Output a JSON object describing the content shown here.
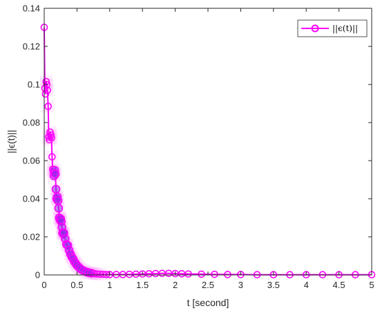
{
  "chart_data": {
    "type": "line",
    "title": "",
    "xlabel": "t  [second]",
    "ylabel": "||ϵ(t)||",
    "xlim": [
      0,
      5
    ],
    "ylim": [
      0,
      0.14
    ],
    "xticks": [
      0,
      0.5,
      1,
      1.5,
      2,
      2.5,
      3,
      3.5,
      4,
      4.5,
      5
    ],
    "xtick_labels": [
      "0",
      "0.5",
      "1",
      "1.5",
      "2",
      "2.5",
      "3",
      "3.5",
      "4",
      "4.5",
      "5"
    ],
    "yticks": [
      0,
      0.02,
      0.04,
      0.06,
      0.08,
      0.1,
      0.12,
      0.14
    ],
    "ytick_labels": [
      "0",
      "0.02",
      "0.04",
      "0.06",
      "0.08",
      "0.1",
      "0.12",
      "0.14"
    ],
    "grid": false,
    "legend_position": "top-right",
    "colors": {
      "series": "#ff00ff",
      "marker_blend": "#8a2be2"
    },
    "series": [
      {
        "name": "||ϵ(t)||",
        "marker": "circle-open",
        "x": [
          0,
          0.01,
          0.02,
          0.03,
          0.04,
          0.05,
          0.06,
          0.07,
          0.08,
          0.09,
          0.1,
          0.11,
          0.12,
          0.13,
          0.14,
          0.15,
          0.16,
          0.17,
          0.18,
          0.19,
          0.2,
          0.21,
          0.22,
          0.23,
          0.24,
          0.25,
          0.26,
          0.27,
          0.28,
          0.29,
          0.3,
          0.32,
          0.34,
          0.36,
          0.38,
          0.4,
          0.42,
          0.44,
          0.46,
          0.48,
          0.5,
          0.53,
          0.56,
          0.6,
          0.64,
          0.68,
          0.72,
          0.76,
          0.8,
          0.85,
          0.9,
          0.95,
          1.0,
          1.1,
          1.2,
          1.3,
          1.4,
          1.5,
          1.6,
          1.7,
          1.8,
          1.9,
          2.0,
          2.1,
          2.2,
          2.4,
          2.6,
          2.8,
          3.0,
          3.25,
          3.5,
          3.75,
          4.0,
          4.25,
          4.5,
          4.75,
          5.0
        ],
        "y": [
          0.13,
          0.098,
          0.095,
          0.1015,
          0.1,
          0.097,
          0.0885,
          0.0725,
          0.071,
          0.075,
          0.0735,
          0.072,
          0.062,
          0.0555,
          0.054,
          0.052,
          0.055,
          0.053,
          0.045,
          0.04,
          0.041,
          0.039,
          0.035,
          0.03,
          0.029,
          0.0295,
          0.028,
          0.025,
          0.022,
          0.0215,
          0.022,
          0.019,
          0.016,
          0.0155,
          0.013,
          0.011,
          0.0095,
          0.0085,
          0.007,
          0.006,
          0.005,
          0.004,
          0.003,
          0.0022,
          0.0016,
          0.0012,
          0.0009,
          0.0007,
          0.0005,
          0.0004,
          0.0003,
          0.0002,
          0.0002,
          0.0002,
          0.0002,
          0.0003,
          0.0004,
          0.0005,
          0.0006,
          0.0007,
          0.0008,
          0.0008,
          0.0007,
          0.0006,
          0.0005,
          0.0004,
          0.0003,
          0.0002,
          0.0002,
          0.0001,
          0.0001,
          0.0001,
          0.0001,
          0.0001,
          0.0001,
          0.0001,
          0.0001
        ]
      }
    ]
  }
}
